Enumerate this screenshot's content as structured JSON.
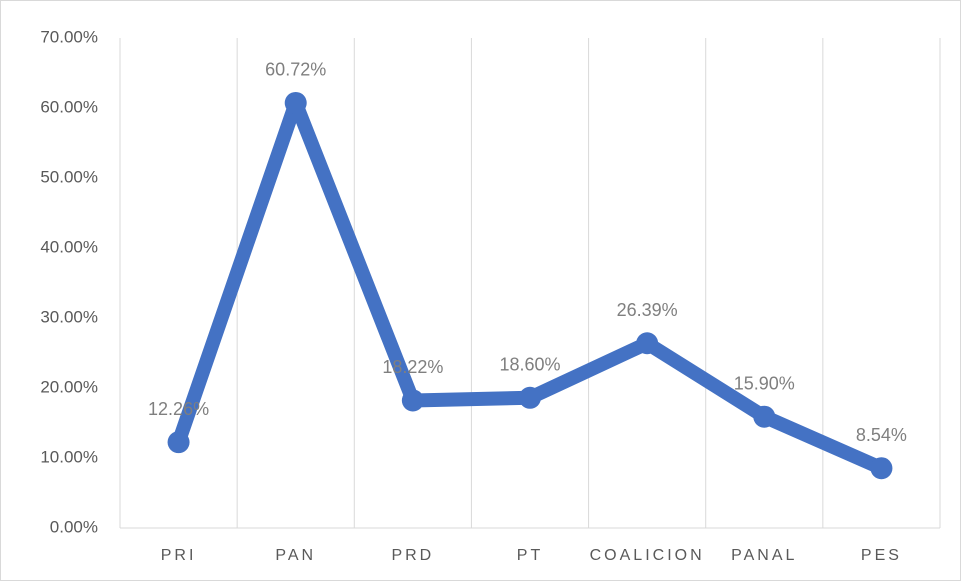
{
  "chart_data": {
    "type": "line",
    "categories": [
      "PRI",
      "PAN",
      "PRD",
      "PT",
      "COALICION",
      "PANAL",
      "PES"
    ],
    "values": [
      12.26,
      60.72,
      18.22,
      18.6,
      26.39,
      15.9,
      8.54
    ],
    "value_labels": [
      "12.26%",
      "60.72%",
      "18.22%",
      "18.60%",
      "26.39%",
      "15.90%",
      "8.54%"
    ],
    "color": "#4472c4",
    "ylim": [
      0,
      70
    ],
    "yticks": [
      {
        "value": 0,
        "label": "0.00%"
      },
      {
        "value": 10,
        "label": "10.00%"
      },
      {
        "value": 20,
        "label": "20.00%"
      },
      {
        "value": 30,
        "label": "30.00%"
      },
      {
        "value": 40,
        "label": "40.00%"
      },
      {
        "value": 50,
        "label": "50.00%"
      },
      {
        "value": 60,
        "label": "60.00%"
      },
      {
        "value": 70,
        "label": "70.00%"
      }
    ]
  }
}
